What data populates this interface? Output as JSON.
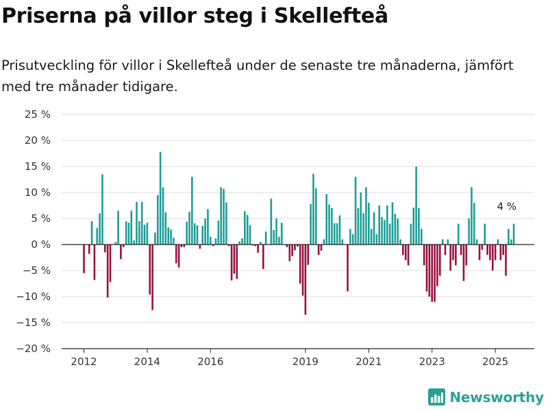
{
  "title": "Priserna på villor steg i Skellefteå",
  "subtitle": "Prisutveckling för villor i Skellefteå under de senaste tre månaderna, jämfört med tre månader tidigare.",
  "brand": {
    "name": "Newsworthy",
    "icon": "bar-chart-logo-icon"
  },
  "colors": {
    "positive": "#1a9e96",
    "negative": "#990f3d",
    "grid": "#dddddd",
    "axis": "#222222",
    "brand": "#2aa198"
  },
  "chart_data": {
    "type": "bar",
    "title": "Priserna på villor steg i Skellefteå",
    "subtitle": "Prisutveckling för villor i Skellefteå under de senaste tre månaderna, jämfört med tre månader tidigare.",
    "xlabel": "",
    "ylabel": "",
    "y_unit": "%",
    "ylim": [
      -20,
      25
    ],
    "y_ticks": [
      25,
      20,
      15,
      10,
      5,
      0,
      -5,
      -10,
      -15,
      -20
    ],
    "y_tick_labels": [
      "25 %",
      "20 %",
      "15 %",
      "10 %",
      "5 %",
      "0 %",
      "−5 %",
      "−10 %",
      "−15 %",
      "−20 %"
    ],
    "x_ticks": [
      2012,
      2014,
      2016,
      2019,
      2021,
      2023,
      2025
    ],
    "x_tick_labels": [
      "2012",
      "2014",
      "2016",
      "2019",
      "2021",
      "2023",
      "2025"
    ],
    "grid": true,
    "legend": "none",
    "end_label": "4 %",
    "series": [
      {
        "points": [
          [
            "2012-01",
            -5.5
          ],
          [
            "2012-03",
            -1.8
          ],
          [
            "2012-04",
            4.5
          ],
          [
            "2012-05",
            -6.8
          ],
          [
            "2012-06",
            3.2
          ],
          [
            "2012-07",
            6.0
          ],
          [
            "2012-08",
            13.5
          ],
          [
            "2012-09",
            -1.5
          ],
          [
            "2012-10",
            -10.2
          ],
          [
            "2012-11",
            -7.2
          ],
          [
            "2013-01",
            0.5
          ],
          [
            "2013-02",
            6.5
          ],
          [
            "2013-03",
            -2.8
          ],
          [
            "2013-04",
            -0.5
          ],
          [
            "2013-05",
            4.5
          ],
          [
            "2013-06",
            4.2
          ],
          [
            "2013-07",
            6.5
          ],
          [
            "2013-08",
            0.8
          ],
          [
            "2013-09",
            8.2
          ],
          [
            "2013-10",
            4.5
          ],
          [
            "2013-11",
            8.2
          ],
          [
            "2013-12",
            3.8
          ],
          [
            "2014-01",
            4.2
          ],
          [
            "2014-02",
            -9.6
          ],
          [
            "2014-03",
            -12.6
          ],
          [
            "2014-04",
            2.3
          ],
          [
            "2014-05",
            9.5
          ],
          [
            "2014-06",
            17.8
          ],
          [
            "2014-07",
            11.0
          ],
          [
            "2014-08",
            6.2
          ],
          [
            "2014-09",
            3.3
          ],
          [
            "2014-10",
            2.9
          ],
          [
            "2014-11",
            1.3
          ],
          [
            "2014-12",
            -3.6
          ],
          [
            "2015-01",
            -4.4
          ],
          [
            "2015-02",
            -0.5
          ],
          [
            "2015-03",
            -0.5
          ],
          [
            "2015-04",
            4.4
          ],
          [
            "2015-05",
            6.3
          ],
          [
            "2015-06",
            13.0
          ],
          [
            "2015-07",
            4.1
          ],
          [
            "2015-08",
            3.7
          ],
          [
            "2015-09",
            -0.8
          ],
          [
            "2015-10",
            3.6
          ],
          [
            "2015-11",
            5.0
          ],
          [
            "2015-12",
            6.8
          ],
          [
            "2016-01",
            1.5
          ],
          [
            "2016-02",
            -0.3
          ],
          [
            "2016-03",
            1.2
          ],
          [
            "2016-04",
            4.6
          ],
          [
            "2016-05",
            11.0
          ],
          [
            "2016-06",
            10.7
          ],
          [
            "2016-07",
            8.1
          ],
          [
            "2016-08",
            -0.3
          ],
          [
            "2016-09",
            -6.9
          ],
          [
            "2016-10",
            -5.6
          ],
          [
            "2016-11",
            -6.6
          ],
          [
            "2016-12",
            0.6
          ],
          [
            "2017-01",
            1.2
          ],
          [
            "2017-02",
            6.4
          ],
          [
            "2017-03",
            5.7
          ],
          [
            "2017-04",
            3.7
          ],
          [
            "2017-05",
            -0.2
          ],
          [
            "2017-06",
            -0.3
          ],
          [
            "2017-07",
            -1.6
          ],
          [
            "2017-08",
            0.5
          ],
          [
            "2017-09",
            -4.7
          ],
          [
            "2017-10",
            2.5
          ],
          [
            "2017-12",
            8.8
          ],
          [
            "2018-01",
            2.8
          ],
          [
            "2018-02",
            5.0
          ],
          [
            "2018-03",
            1.5
          ],
          [
            "2018-04",
            4.2
          ],
          [
            "2018-06",
            -0.5
          ],
          [
            "2018-07",
            -3.2
          ],
          [
            "2018-08",
            -2.2
          ],
          [
            "2018-09",
            -1.1
          ],
          [
            "2018-10",
            -0.4
          ],
          [
            "2018-11",
            -7.5
          ],
          [
            "2018-12",
            -9.8
          ],
          [
            "2019-01",
            -13.5
          ],
          [
            "2019-02",
            -3.9
          ],
          [
            "2019-03",
            7.8
          ],
          [
            "2019-04",
            13.6
          ],
          [
            "2019-05",
            10.8
          ],
          [
            "2019-06",
            -2.0
          ],
          [
            "2019-07",
            -1.2
          ],
          [
            "2019-08",
            1.0
          ],
          [
            "2019-09",
            9.7
          ],
          [
            "2019-10",
            7.7
          ],
          [
            "2019-11",
            7.0
          ],
          [
            "2019-12",
            4.1
          ],
          [
            "2020-01",
            4.1
          ],
          [
            "2020-02",
            5.6
          ],
          [
            "2020-03",
            1.0
          ],
          [
            "2020-05",
            -9.0
          ],
          [
            "2020-06",
            3.0
          ],
          [
            "2020-07",
            2.0
          ],
          [
            "2020-08",
            13.0
          ],
          [
            "2020-09",
            7.0
          ],
          [
            "2020-10",
            10.0
          ],
          [
            "2020-11",
            6.0
          ],
          [
            "2020-12",
            11.0
          ],
          [
            "2021-01",
            8.0
          ],
          [
            "2021-02",
            3.0
          ],
          [
            "2021-03",
            6.2
          ],
          [
            "2021-04",
            2.0
          ],
          [
            "2021-05",
            7.5
          ],
          [
            "2021-06",
            5.3
          ],
          [
            "2021-07",
            4.7
          ],
          [
            "2021-08",
            7.5
          ],
          [
            "2021-09",
            4.0
          ],
          [
            "2021-10",
            8.1
          ],
          [
            "2021-11",
            5.9
          ],
          [
            "2021-12",
            5.0
          ],
          [
            "2022-01",
            1.0
          ],
          [
            "2022-02",
            -2.0
          ],
          [
            "2022-03",
            -3.0
          ],
          [
            "2022-04",
            -4.0
          ],
          [
            "2022-05",
            4.0
          ],
          [
            "2022-06",
            7.1
          ],
          [
            "2022-07",
            15.0
          ],
          [
            "2022-08",
            7.0
          ],
          [
            "2022-09",
            3.0
          ],
          [
            "2022-10",
            -4.0
          ],
          [
            "2022-11",
            -9.0
          ],
          [
            "2022-12",
            -10.0
          ],
          [
            "2023-01",
            -11.0
          ],
          [
            "2023-02",
            -11.0
          ],
          [
            "2023-03",
            -8.0
          ],
          [
            "2023-04",
            -6.0
          ],
          [
            "2023-05",
            1.0
          ],
          [
            "2023-06",
            -2.0
          ],
          [
            "2023-07",
            1.0
          ],
          [
            "2023-08",
            -5.0
          ],
          [
            "2023-09",
            -3.0
          ],
          [
            "2023-10",
            -4.0
          ],
          [
            "2023-11",
            4.0
          ],
          [
            "2023-12",
            -2.0
          ],
          [
            "2024-01",
            -7.0
          ],
          [
            "2024-02",
            -4.0
          ],
          [
            "2024-03",
            5.0
          ],
          [
            "2024-04",
            11.0
          ],
          [
            "2024-05",
            8.0
          ],
          [
            "2024-06",
            1.0
          ],
          [
            "2024-07",
            -3.0
          ],
          [
            "2024-08",
            -1.0
          ],
          [
            "2024-09",
            4.0
          ],
          [
            "2024-10",
            -2.0
          ],
          [
            "2024-11",
            -3.0
          ],
          [
            "2024-12",
            -5.0
          ],
          [
            "2025-01",
            -3.0
          ],
          [
            "2025-02",
            1.0
          ],
          [
            "2025-03",
            -3.0
          ],
          [
            "2025-04",
            -2.0
          ],
          [
            "2025-05",
            -6.0
          ],
          [
            "2025-06",
            3.0
          ],
          [
            "2025-07",
            1.0
          ],
          [
            "2025-08",
            4.0
          ]
        ]
      }
    ]
  }
}
